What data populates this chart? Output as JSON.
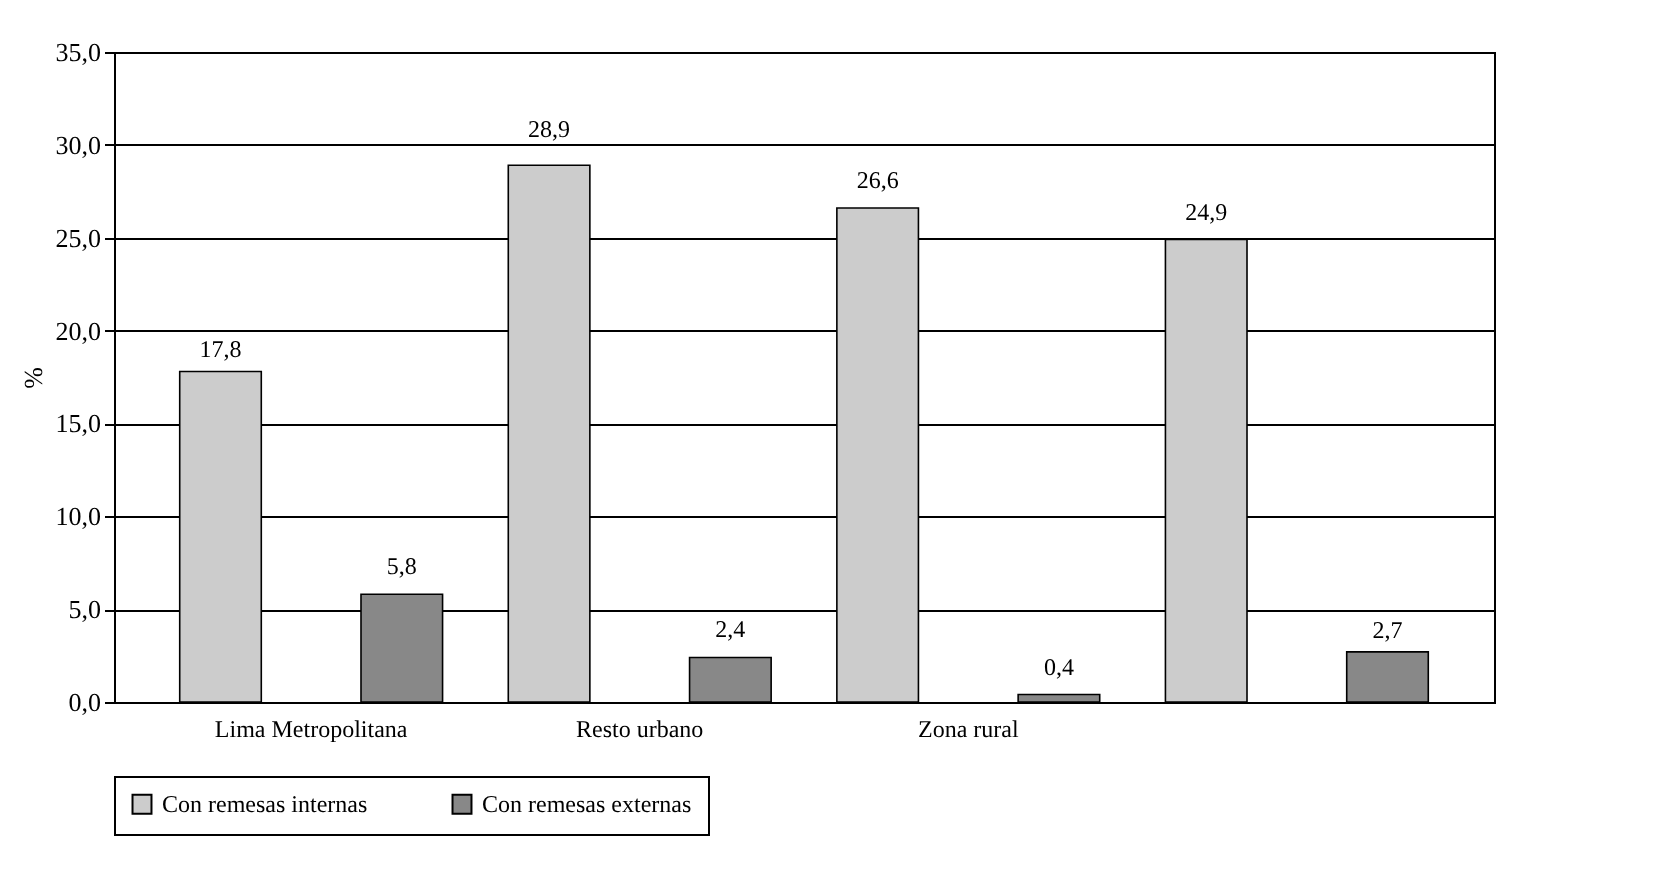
{
  "chart_data": {
    "type": "bar",
    "ylabel": "%",
    "categories": [
      "Lima Metropolitana",
      "Resto urbano",
      "Zona rural",
      null
    ],
    "series": [
      {
        "name": "Con remesas internas",
        "color": "#cccccc",
        "values": [
          17.8,
          28.9,
          26.6,
          24.9
        ],
        "value_labels": [
          "17,8",
          "28,9",
          "26,6",
          "24,9"
        ]
      },
      {
        "name": "Con remesas externas",
        "color": "#888888",
        "values": [
          5.8,
          2.4,
          0.4,
          2.7
        ],
        "value_labels": [
          "5,8",
          "2,4",
          "0,4",
          "2,7"
        ]
      }
    ],
    "ylim": [
      0,
      35
    ],
    "yticks": [
      {
        "value": 0,
        "label": "0,0"
      },
      {
        "value": 5,
        "label": "5,0"
      },
      {
        "value": 10,
        "label": "10,0"
      },
      {
        "value": 15,
        "label": "15,0"
      },
      {
        "value": 20,
        "label": "20,0"
      },
      {
        "value": 25,
        "label": "25,0"
      },
      {
        "value": 30,
        "label": "30,0"
      },
      {
        "value": 35,
        "label": "35,0"
      }
    ],
    "grid": "y",
    "legend": "bottom",
    "data_labels": true
  }
}
